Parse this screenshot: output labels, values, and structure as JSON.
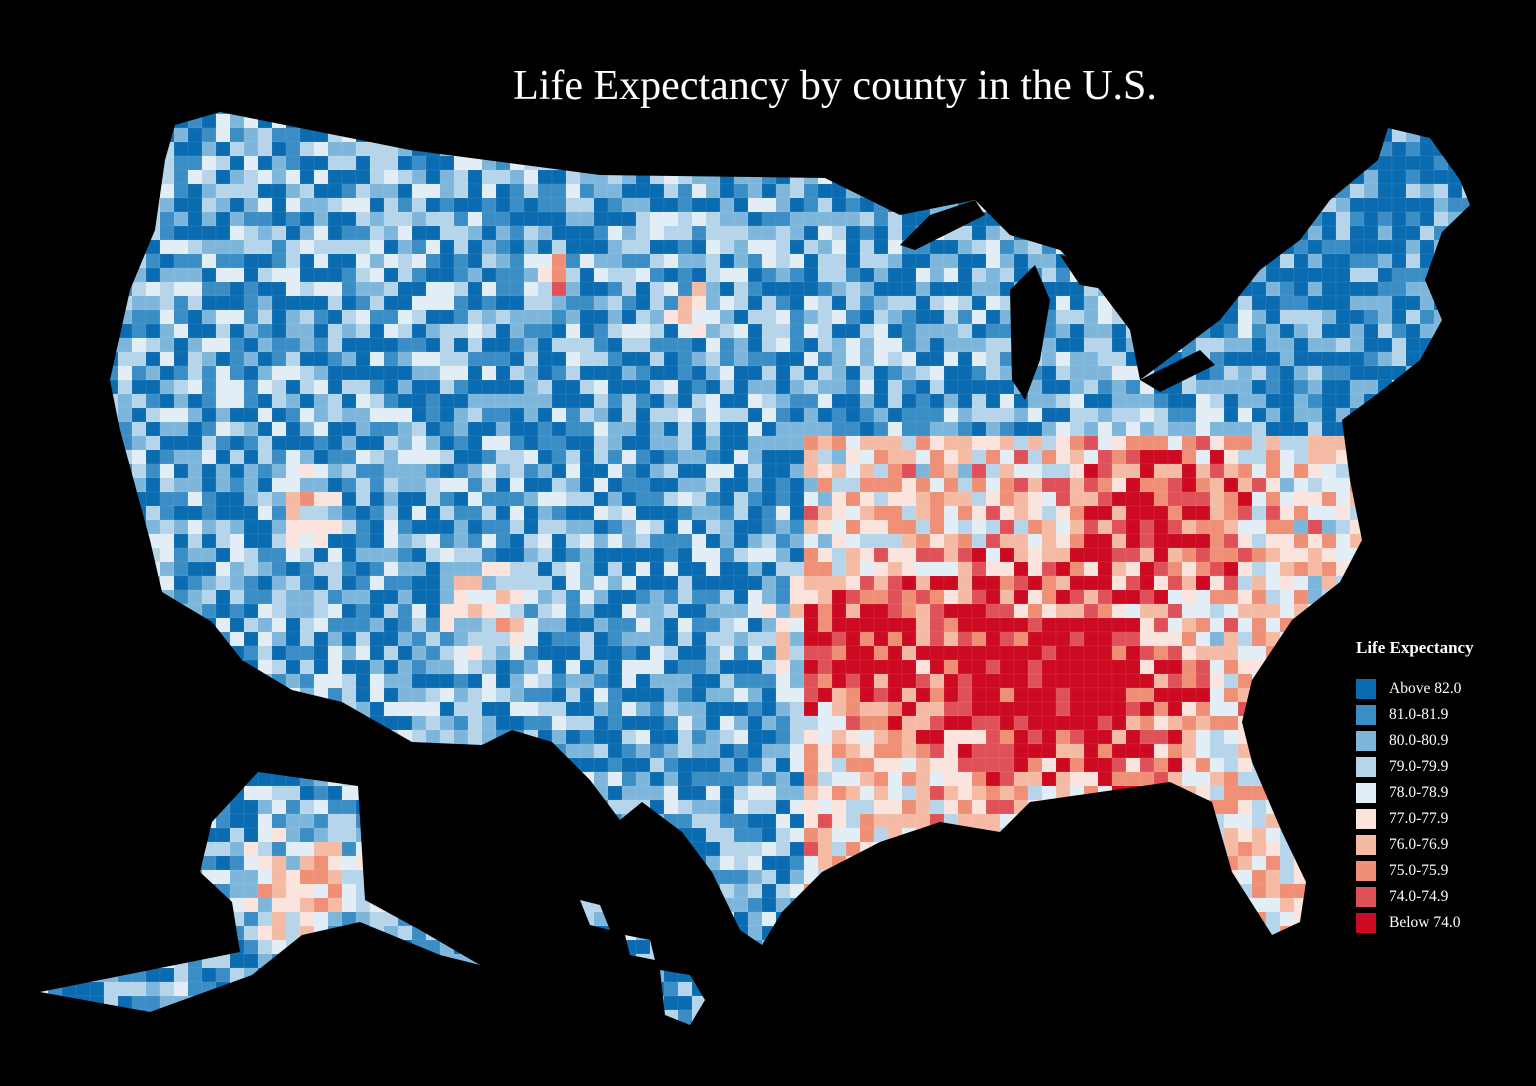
{
  "title": "Life Expectancy by county in the U.S.",
  "legend": {
    "title": "Life Expectancy",
    "items": [
      {
        "label": "Above 82.0",
        "color": "#0a6bb0"
      },
      {
        "label": "81.0-81.9",
        "color": "#3a8dc5"
      },
      {
        "label": "80.0-80.9",
        "color": "#7db6da"
      },
      {
        "label": "79.0-79.9",
        "color": "#b6d5ea"
      },
      {
        "label": "78.0-78.9",
        "color": "#e2edf5"
      },
      {
        "label": "77.0-77.9",
        "color": "#fbe4dd"
      },
      {
        "label": "76.0-76.9",
        "color": "#f5baa4"
      },
      {
        "label": "75.0-75.9",
        "color": "#ee8f76"
      },
      {
        "label": "74.0-74.9",
        "color": "#df5158"
      },
      {
        "label": "Below 74.0",
        "color": "#cc0a22"
      }
    ]
  },
  "background": "#000000"
}
